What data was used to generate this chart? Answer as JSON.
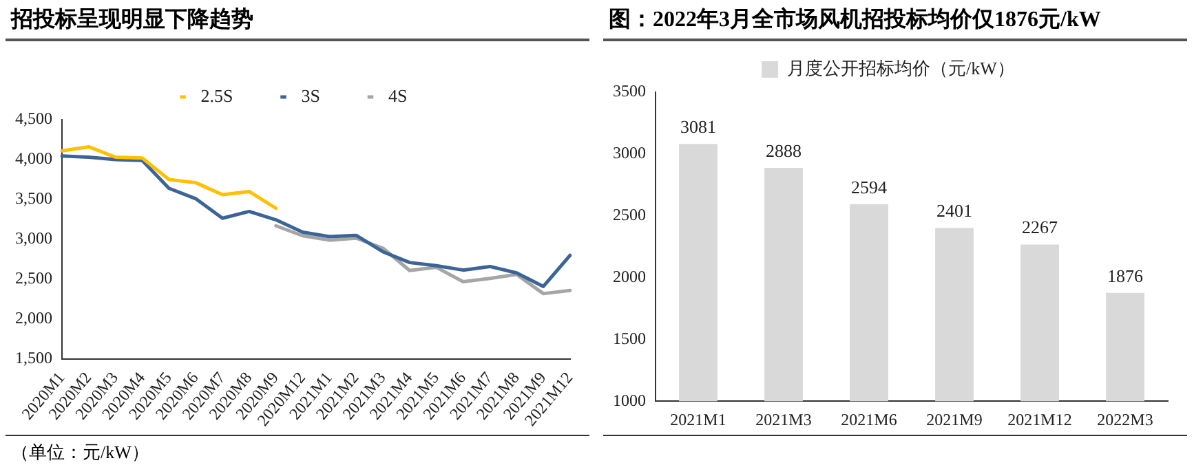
{
  "chart_data": [
    {
      "type": "line",
      "title": "招投标呈现明显下降趋势",
      "annotations": [
        "（单位：元/kW）"
      ],
      "categories": [
        "2020M1",
        "2020M2",
        "2020M3",
        "2020M4",
        "2020M5",
        "2020M6",
        "2020M7",
        "2020M8",
        "2020M9",
        "2020M12",
        "2021M1",
        "2021M2",
        "2021M3",
        "2021M4",
        "2021M5",
        "2021M6",
        "2021M7",
        "2021M8",
        "2021M9",
        "2021M12"
      ],
      "series": [
        {
          "name": "2.5S",
          "color": "#ffc000",
          "values": [
            4110,
            4160,
            4030,
            4020,
            3750,
            3710,
            3560,
            3600,
            3390,
            null,
            null,
            null,
            null,
            null,
            null,
            null,
            null,
            null,
            null,
            null
          ]
        },
        {
          "name": "3S",
          "color": "#3c6496",
          "values": [
            4045,
            4030,
            4000,
            3990,
            3640,
            3510,
            3265,
            3350,
            3245,
            3090,
            3035,
            3050,
            2845,
            2710,
            2670,
            2615,
            2660,
            2580,
            2410,
            2800
          ]
        },
        {
          "name": "4S",
          "color": "#a6a6a6",
          "values": [
            null,
            null,
            null,
            null,
            null,
            null,
            null,
            null,
            3170,
            3045,
            2990,
            3015,
            2890,
            2610,
            2650,
            2470,
            2510,
            2560,
            2320,
            2360
          ]
        }
      ],
      "ylim": [
        1500,
        4500
      ],
      "yticks": [
        {
          "value": 1500,
          "label": "1,500"
        },
        {
          "value": 2000,
          "label": "2,000"
        },
        {
          "value": 2500,
          "label": "2,500"
        },
        {
          "value": 3000,
          "label": "3,000"
        },
        {
          "value": 3500,
          "label": "3,500"
        },
        {
          "value": 4000,
          "label": "4,000"
        },
        {
          "value": 4500,
          "label": "4,500"
        }
      ],
      "grid": false,
      "legend": "top",
      "marker": "none",
      "line_style": "solid"
    },
    {
      "type": "bar",
      "title": "图：2022年3月全市场风机招投标均价仅1876元/kW",
      "categories": [
        "2021M1",
        "2021M3",
        "2021M6",
        "2021M9",
        "2021M12",
        "2022M3"
      ],
      "series": [
        {
          "name": "月度公开招标均价（元/kW）",
          "color": "#d9d9d9",
          "values": [
            3081,
            2888,
            2594,
            2401,
            2267,
            1876
          ]
        }
      ],
      "ylim": [
        1000,
        3500
      ],
      "yticks": [
        1000,
        1500,
        2000,
        2500,
        3000,
        3500
      ],
      "grid": false,
      "legend": "top",
      "data_labels": true
    }
  ]
}
